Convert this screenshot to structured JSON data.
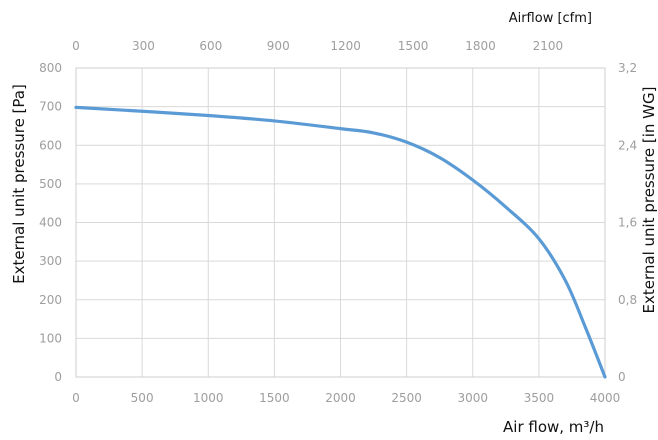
{
  "chart_data": {
    "type": "line",
    "xlabel": "Air flow, m³/h",
    "x2label": "Airflow [cfm]",
    "ylabel": "External unit pressure [Pa]",
    "y2label": "External unit pressure [in WG]",
    "xlim": [
      0,
      4000
    ],
    "ylim": [
      0,
      800
    ],
    "x_ticks": [
      "0",
      "500",
      "1000",
      "1500",
      "2000",
      "2500",
      "3000",
      "3500",
      "4000"
    ],
    "y_ticks": [
      "0",
      "100",
      "200",
      "300",
      "400",
      "500",
      "600",
      "700",
      "800"
    ],
    "x2_ticks": [
      {
        "label": "0",
        "value": 0
      },
      {
        "label": "300",
        "value": 300
      },
      {
        "label": "600",
        "value": 600
      },
      {
        "label": "900",
        "value": 900
      },
      {
        "label": "1200",
        "value": 1200
      },
      {
        "label": "1500",
        "value": 1500
      },
      {
        "label": "1800",
        "value": 1800
      },
      {
        "label": "2100",
        "value": 2100
      }
    ],
    "x2_max": 2354,
    "y2_ticks": [
      {
        "label": "0",
        "value": 0
      },
      {
        "label": "0,8",
        "value": 0.8
      },
      {
        "label": "1,6",
        "value": 1.6
      },
      {
        "label": "2,4",
        "value": 2.4
      },
      {
        "label": "3,2",
        "value": 3.2
      }
    ],
    "y2_max": 3.2,
    "grid": true,
    "series": [
      {
        "color": "#5b9bd5",
        "x": [
          0,
          500,
          1000,
          1500,
          2000,
          2250,
          2500,
          2750,
          3000,
          3250,
          3500,
          3700,
          3850,
          4000
        ],
        "y": [
          698,
          688,
          677,
          663,
          643,
          632,
          608,
          568,
          510,
          440,
          358,
          250,
          130,
          0
        ]
      }
    ]
  }
}
